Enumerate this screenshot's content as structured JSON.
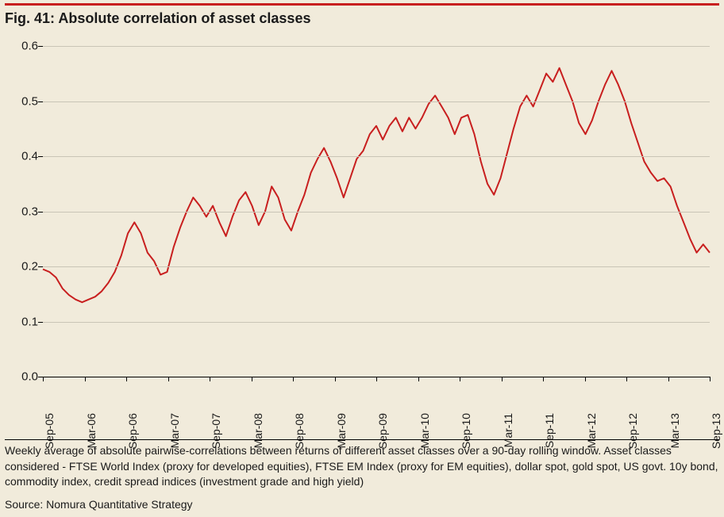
{
  "figure": {
    "title": "Fig. 41: Absolute correlation of asset classes",
    "title_fontsize": 18,
    "title_fontweight": "bold",
    "background_color": "#f1ebdb",
    "accent_border_color": "#c81f1f",
    "chart": {
      "type": "line",
      "line_color": "#c81f1f",
      "line_width": 2,
      "grid_color": "#c9c4b6",
      "axis_color": "#000000",
      "ylim": [
        0.0,
        0.6
      ],
      "yticks": [
        0.0,
        0.1,
        0.2,
        0.3,
        0.4,
        0.5,
        0.6
      ],
      "ytick_labels": [
        "0.0",
        "0.1",
        "0.2",
        "0.3",
        "0.4",
        "0.5",
        "0.6"
      ],
      "xtick_labels": [
        "Sep-05",
        "Mar-06",
        "Sep-06",
        "Mar-07",
        "Sep-07",
        "Mar-08",
        "Sep-08",
        "Mar-09",
        "Sep-09",
        "Mar-10",
        "Sep-10",
        "Mar-11",
        "Sep-11",
        "Mar-12",
        "Sep-12",
        "Mar-13",
        "Sep-13"
      ],
      "x_domain": [
        0,
        102
      ],
      "series": [
        {
          "x": 0,
          "y": 0.195
        },
        {
          "x": 1,
          "y": 0.19
        },
        {
          "x": 2,
          "y": 0.18
        },
        {
          "x": 3,
          "y": 0.16
        },
        {
          "x": 4,
          "y": 0.148
        },
        {
          "x": 5,
          "y": 0.14
        },
        {
          "x": 6,
          "y": 0.135
        },
        {
          "x": 7,
          "y": 0.14
        },
        {
          "x": 8,
          "y": 0.145
        },
        {
          "x": 9,
          "y": 0.155
        },
        {
          "x": 10,
          "y": 0.17
        },
        {
          "x": 11,
          "y": 0.19
        },
        {
          "x": 12,
          "y": 0.22
        },
        {
          "x": 13,
          "y": 0.26
        },
        {
          "x": 14,
          "y": 0.28
        },
        {
          "x": 15,
          "y": 0.26
        },
        {
          "x": 16,
          "y": 0.225
        },
        {
          "x": 17,
          "y": 0.21
        },
        {
          "x": 18,
          "y": 0.185
        },
        {
          "x": 19,
          "y": 0.19
        },
        {
          "x": 20,
          "y": 0.235
        },
        {
          "x": 21,
          "y": 0.27
        },
        {
          "x": 22,
          "y": 0.3
        },
        {
          "x": 23,
          "y": 0.325
        },
        {
          "x": 24,
          "y": 0.31
        },
        {
          "x": 25,
          "y": 0.29
        },
        {
          "x": 26,
          "y": 0.31
        },
        {
          "x": 27,
          "y": 0.28
        },
        {
          "x": 28,
          "y": 0.255
        },
        {
          "x": 29,
          "y": 0.29
        },
        {
          "x": 30,
          "y": 0.32
        },
        {
          "x": 31,
          "y": 0.335
        },
        {
          "x": 32,
          "y": 0.31
        },
        {
          "x": 33,
          "y": 0.275
        },
        {
          "x": 34,
          "y": 0.3
        },
        {
          "x": 35,
          "y": 0.345
        },
        {
          "x": 36,
          "y": 0.325
        },
        {
          "x": 37,
          "y": 0.285
        },
        {
          "x": 38,
          "y": 0.265
        },
        {
          "x": 39,
          "y": 0.3
        },
        {
          "x": 40,
          "y": 0.33
        },
        {
          "x": 41,
          "y": 0.37
        },
        {
          "x": 42,
          "y": 0.395
        },
        {
          "x": 43,
          "y": 0.415
        },
        {
          "x": 44,
          "y": 0.39
        },
        {
          "x": 45,
          "y": 0.36
        },
        {
          "x": 46,
          "y": 0.325
        },
        {
          "x": 47,
          "y": 0.36
        },
        {
          "x": 48,
          "y": 0.395
        },
        {
          "x": 49,
          "y": 0.41
        },
        {
          "x": 50,
          "y": 0.44
        },
        {
          "x": 51,
          "y": 0.455
        },
        {
          "x": 52,
          "y": 0.43
        },
        {
          "x": 53,
          "y": 0.455
        },
        {
          "x": 54,
          "y": 0.47
        },
        {
          "x": 55,
          "y": 0.445
        },
        {
          "x": 56,
          "y": 0.47
        },
        {
          "x": 57,
          "y": 0.45
        },
        {
          "x": 58,
          "y": 0.47
        },
        {
          "x": 59,
          "y": 0.495
        },
        {
          "x": 60,
          "y": 0.51
        },
        {
          "x": 61,
          "y": 0.49
        },
        {
          "x": 62,
          "y": 0.47
        },
        {
          "x": 63,
          "y": 0.44
        },
        {
          "x": 64,
          "y": 0.47
        },
        {
          "x": 65,
          "y": 0.475
        },
        {
          "x": 66,
          "y": 0.44
        },
        {
          "x": 67,
          "y": 0.39
        },
        {
          "x": 68,
          "y": 0.35
        },
        {
          "x": 69,
          "y": 0.33
        },
        {
          "x": 70,
          "y": 0.36
        },
        {
          "x": 71,
          "y": 0.405
        },
        {
          "x": 72,
          "y": 0.45
        },
        {
          "x": 73,
          "y": 0.49
        },
        {
          "x": 74,
          "y": 0.51
        },
        {
          "x": 75,
          "y": 0.49
        },
        {
          "x": 76,
          "y": 0.52
        },
        {
          "x": 77,
          "y": 0.55
        },
        {
          "x": 78,
          "y": 0.535
        },
        {
          "x": 79,
          "y": 0.56
        },
        {
          "x": 80,
          "y": 0.53
        },
        {
          "x": 81,
          "y": 0.5
        },
        {
          "x": 82,
          "y": 0.46
        },
        {
          "x": 83,
          "y": 0.44
        },
        {
          "x": 84,
          "y": 0.465
        },
        {
          "x": 85,
          "y": 0.5
        },
        {
          "x": 86,
          "y": 0.53
        },
        {
          "x": 87,
          "y": 0.555
        },
        {
          "x": 88,
          "y": 0.53
        },
        {
          "x": 89,
          "y": 0.5
        },
        {
          "x": 90,
          "y": 0.46
        },
        {
          "x": 91,
          "y": 0.425
        },
        {
          "x": 92,
          "y": 0.39
        },
        {
          "x": 93,
          "y": 0.37
        },
        {
          "x": 94,
          "y": 0.355
        },
        {
          "x": 95,
          "y": 0.36
        },
        {
          "x": 96,
          "y": 0.345
        },
        {
          "x": 97,
          "y": 0.31
        },
        {
          "x": 98,
          "y": 0.28
        },
        {
          "x": 99,
          "y": 0.25
        },
        {
          "x": 100,
          "y": 0.225
        },
        {
          "x": 101,
          "y": 0.24
        },
        {
          "x": 102,
          "y": 0.225
        }
      ]
    },
    "caption": "Weekly average of absolute pairwise-correlations between returns of different asset classes over a 90-day rolling window. Asset classes considered - FTSE World Index (proxy for developed equities), FTSE EM Index (proxy for EM equities), dollar spot, gold spot, US govt. 10y bond, commodity index, credit spread indices (investment grade and high yield)",
    "source": "Source: Nomura Quantitative Strategy"
  }
}
